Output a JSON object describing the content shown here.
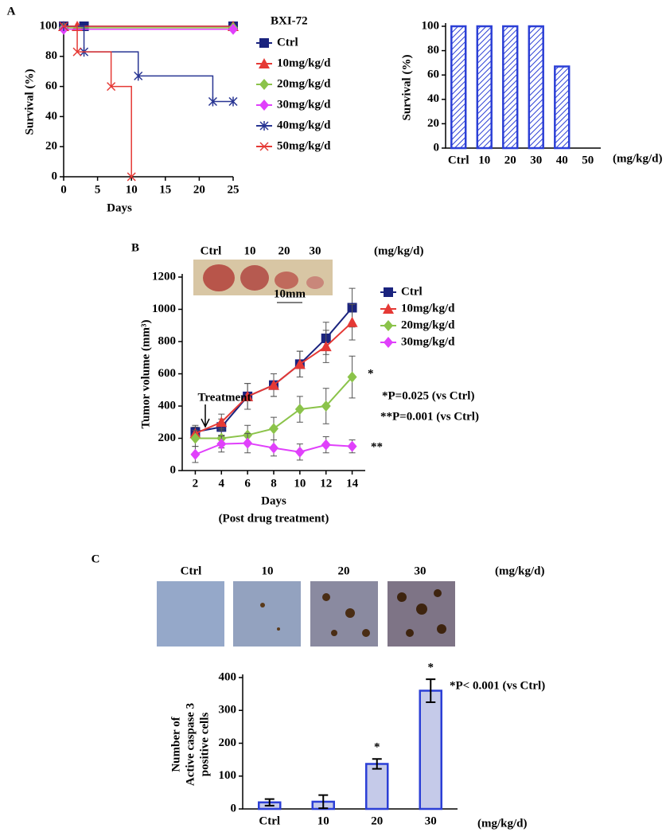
{
  "chart_data": [
    {
      "type": "line",
      "step": true,
      "panel": "A",
      "legend_title": "BXI-72",
      "xlabel": "Days",
      "ylabel": "Survival (%)",
      "xlim": [
        0,
        25
      ],
      "xticks": [
        0,
        5,
        10,
        15,
        20,
        25
      ],
      "ylim": [
        0,
        100
      ],
      "yticks": [
        0,
        20,
        40,
        60,
        80,
        100
      ],
      "series": [
        {
          "name": "Ctrl",
          "color": "#1a237e",
          "marker": "square",
          "x": [
            0,
            3,
            25
          ],
          "values": [
            100,
            100,
            100
          ]
        },
        {
          "name": "10mg/kg/d",
          "color": "#e53935",
          "marker": "triangle",
          "x": [
            0,
            2,
            25
          ],
          "values": [
            100,
            100,
            100
          ]
        },
        {
          "name": "20mg/kg/d",
          "color": "#8bc34a",
          "marker": "diamond",
          "x": [
            0,
            25
          ],
          "values": [
            99,
            99
          ]
        },
        {
          "name": "30mg/kg/d",
          "color": "#e040fb",
          "marker": "diamond",
          "x": [
            0,
            25
          ],
          "values": [
            98,
            98
          ]
        },
        {
          "name": "40mg/kg/d",
          "color": "#283593",
          "marker": "star",
          "x": [
            0,
            3,
            11,
            22,
            25
          ],
          "values": [
            100,
            83,
            67,
            50,
            50
          ]
        },
        {
          "name": "50mg/kg/d",
          "color": "#e53935",
          "marker": "cross",
          "x": [
            0,
            2,
            7,
            10
          ],
          "values": [
            100,
            83,
            60,
            0
          ]
        }
      ]
    },
    {
      "type": "bar",
      "hatch": true,
      "color": "#2b3fd6",
      "ylabel": "Survival (%)",
      "unit_label": "(mg/kg/d)",
      "categories": [
        "Ctrl",
        "10",
        "20",
        "30",
        "40",
        "50"
      ],
      "values": [
        100,
        100,
        100,
        100,
        67,
        0
      ],
      "ylim": [
        0,
        100
      ],
      "yticks": [
        0,
        20,
        40,
        60,
        80,
        100
      ]
    },
    {
      "type": "line",
      "panel": "B",
      "xlabel": "Days",
      "xlabel2": "(Post drug treatment)",
      "ylabel": "Tumor volume (mm³)",
      "photo_labels": [
        "Ctrl",
        "10",
        "20",
        "30",
        "(mg/kg/d)"
      ],
      "scale_label": "10mm",
      "annotations": [
        "Treatment",
        "*",
        "**",
        "*P=0.025 (vs Ctrl)",
        "**P=0.001 (vs Ctrl)"
      ],
      "xlim": [
        1,
        15
      ],
      "xticks": [
        2,
        4,
        6,
        8,
        10,
        12,
        14
      ],
      "ylim": [
        0,
        1200
      ],
      "yticks": [
        0,
        200,
        400,
        600,
        800,
        1000,
        1200
      ],
      "x": [
        2,
        4,
        6,
        8,
        10,
        12,
        14
      ],
      "series": [
        {
          "name": "Ctrl",
          "color": "#1a237e",
          "marker": "square",
          "values": [
            240,
            270,
            460,
            530,
            660,
            820,
            1010
          ],
          "errors": [
            40,
            50,
            80,
            70,
            80,
            100,
            120
          ]
        },
        {
          "name": "10mg/kg/d",
          "color": "#e53935",
          "marker": "triangle",
          "values": [
            230,
            300,
            460,
            530,
            660,
            770,
            920
          ],
          "errors": [
            40,
            50,
            80,
            70,
            80,
            100,
            110
          ]
        },
        {
          "name": "20mg/kg/d",
          "color": "#8bc34a",
          "marker": "diamond",
          "values": [
            200,
            200,
            220,
            260,
            380,
            400,
            580
          ],
          "errors": [
            50,
            60,
            60,
            70,
            80,
            110,
            130
          ]
        },
        {
          "name": "30mg/kg/d",
          "color": "#e040fb",
          "marker": "diamond",
          "values": [
            100,
            165,
            170,
            140,
            115,
            160,
            150
          ],
          "errors": [
            50,
            50,
            60,
            50,
            50,
            50,
            40
          ]
        }
      ]
    },
    {
      "type": "bar",
      "panel": "C",
      "color": "#2b3fd6",
      "fill": "#c5cae9",
      "ylabel": [
        "Number of",
        "Active caspase 3",
        "positive cells"
      ],
      "unit_label": "(mg/kg/d)",
      "photo_labels": [
        "Ctrl",
        "10",
        "20",
        "30",
        "(mg/kg/d)"
      ],
      "annotations": [
        "*",
        "*",
        "*P< 0.001 (vs Ctrl)"
      ],
      "categories": [
        "Ctrl",
        "10",
        "20",
        "30"
      ],
      "values": [
        20,
        22,
        137,
        360
      ],
      "errors": [
        10,
        20,
        15,
        35
      ],
      "ylim": [
        0,
        400
      ],
      "yticks": [
        0,
        100,
        200,
        300,
        400
      ]
    }
  ]
}
